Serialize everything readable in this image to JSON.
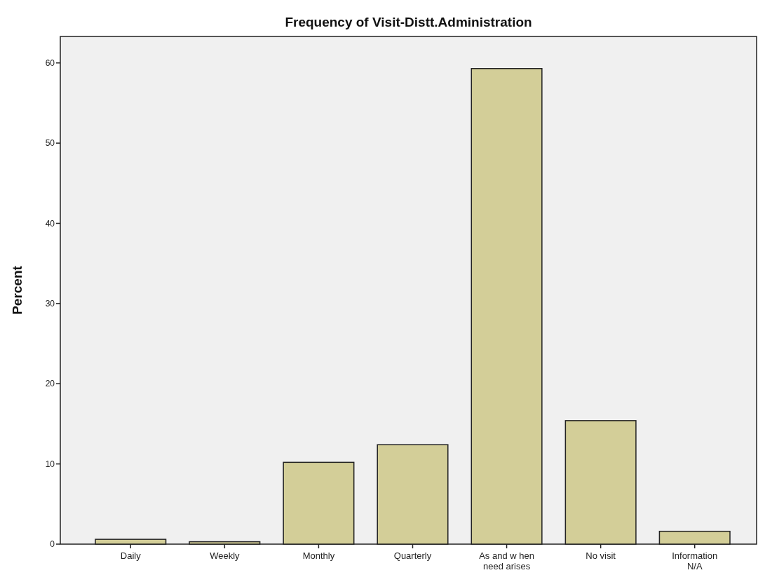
{
  "chart_data": {
    "type": "bar",
    "title": "Frequency of Visit-Distt.Administration",
    "ylabel": "Percent",
    "categories": [
      "Daily",
      "Weekly",
      "Monthly",
      "Quarterly",
      "As and w hen\nneed arises",
      "No visit",
      "Information\nN/A"
    ],
    "values": [
      0.6,
      0.3,
      10.2,
      12.4,
      59.3,
      15.4,
      1.6
    ],
    "color": "#d3ce98",
    "ylim": [
      0,
      63.3
    ],
    "yticks": [
      0,
      10,
      20,
      30,
      40,
      50,
      60
    ],
    "grid": false
  }
}
